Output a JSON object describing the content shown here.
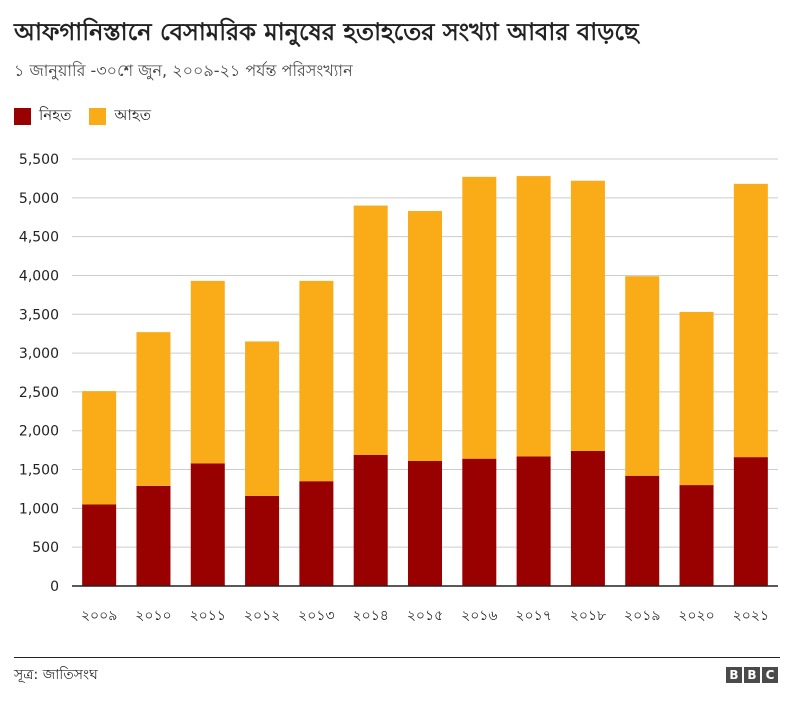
{
  "header": {
    "title": "আফগানিস্তানে বেসামরিক মানুষের হতাহতের সংখ্যা আবার বাড়ছে",
    "subtitle": "১ জানুয়ারি -৩০শে জুন, ২০০৯-২১ পর্যন্ত পরিসংখ্যান"
  },
  "legend": {
    "killed_label": "নিহত",
    "injured_label": "আহত"
  },
  "colors": {
    "killed": "#990000",
    "injured": "#FAAB18",
    "grid": "#cccccc",
    "axis": "#222222"
  },
  "chart_data": {
    "type": "bar",
    "stacked": true,
    "title": "আফগানিস্তানে বেসামরিক মানুষের হতাহতের সংখ্যা আবার বাড়ছে",
    "subtitle": "১ জানুয়ারি -৩০শে জুন, ২০০৯-২১ পর্যন্ত পরিসংখ্যান",
    "categories": [
      "২০০৯",
      "২০১০",
      "২০১১",
      "২০১২",
      "২০১৩",
      "২০১৪",
      "২০১৫",
      "২০১৬",
      "২০১৭",
      "২০১৮",
      "২০১৯",
      "২০২০",
      "২০২১"
    ],
    "series": [
      {
        "name": "নিহত",
        "color": "#990000",
        "values": [
          1050,
          1290,
          1580,
          1160,
          1350,
          1690,
          1610,
          1640,
          1670,
          1740,
          1420,
          1300,
          1660
        ]
      },
      {
        "name": "আহত",
        "color": "#FAAB18",
        "values": [
          1460,
          1980,
          2350,
          1990,
          2580,
          3210,
          3220,
          3630,
          3610,
          3480,
          2570,
          2230,
          3520
        ]
      }
    ],
    "yticks": [
      0,
      500,
      1000,
      1500,
      2000,
      2500,
      3000,
      3500,
      4000,
      4500,
      5000,
      5500
    ],
    "ytick_labels": [
      "0",
      "500",
      "1,000",
      "1,500",
      "2,000",
      "2,500",
      "3,000",
      "3,500",
      "4,000",
      "4,500",
      "5,000",
      "5,500"
    ],
    "ylim": [
      0,
      5500
    ],
    "xlabel": "",
    "ylabel": "",
    "grid": true,
    "legend_position": "top-left"
  },
  "footer": {
    "source": "সূত্র: জাতিসংঘ",
    "logo_letters": [
      "B",
      "B",
      "C"
    ]
  }
}
